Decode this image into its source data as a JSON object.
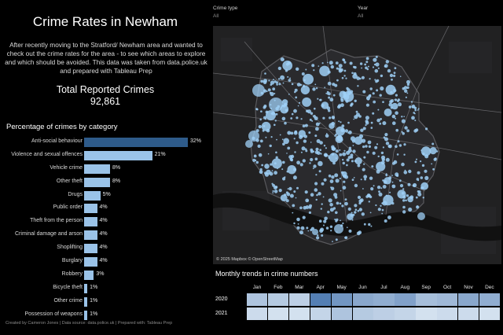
{
  "title": "Crime Rates in Newham",
  "intro": "After recently moving to the Stratford/ Newham area and wanted to check out the crime rates for the area - to see which areas to explore and which should be avoided. This data was taken from data.police.uk and prepared with Tableau Prep",
  "total": {
    "label": "Total Reported Crimes",
    "value": "92,861"
  },
  "categories": {
    "title": "Percentage of crimes by category",
    "items": [
      {
        "label": "Anti-social behaviour",
        "pct": "32%",
        "value": 32
      },
      {
        "label": "Violence and sexual offences",
        "pct": "21%",
        "value": 21
      },
      {
        "label": "Vehicle crime",
        "pct": "8%",
        "value": 8
      },
      {
        "label": "Other theft",
        "pct": "8%",
        "value": 8
      },
      {
        "label": "Drugs",
        "pct": "5%",
        "value": 5
      },
      {
        "label": "Public order",
        "pct": "4%",
        "value": 4
      },
      {
        "label": "Theft from the person",
        "pct": "4%",
        "value": 4
      },
      {
        "label": "Criminal damage and arson",
        "pct": "4%",
        "value": 4
      },
      {
        "label": "Shoplifting",
        "pct": "4%",
        "value": 4
      },
      {
        "label": "Burglary",
        "pct": "4%",
        "value": 4
      },
      {
        "label": "Robbery",
        "pct": "3%",
        "value": 3
      },
      {
        "label": "Bicycle theft",
        "pct": "1%",
        "value": 1
      },
      {
        "label": "Other crime",
        "pct": "1%",
        "value": 1
      },
      {
        "label": "Possession of weapons",
        "pct": "1%",
        "value": 1
      }
    ],
    "bar_color": "#9ac3e8",
    "top_bar_color": "#2e5b8a"
  },
  "filters": {
    "crime_type": {
      "label": "Crime type",
      "value": "All"
    },
    "year": {
      "label": "Year",
      "value": "All"
    }
  },
  "map": {
    "attribution": "© 2025 Mapbox © OpenStreetMap",
    "point_color": "#9fd0f7"
  },
  "trends": {
    "title": "Monthly trends in crime numbers",
    "months": [
      "Jan",
      "Feb",
      "Mar",
      "Apr",
      "May",
      "Jun",
      "Jul",
      "Aug",
      "Sep",
      "Oct",
      "Nov",
      "Dec"
    ],
    "years": [
      {
        "year": "2020",
        "shades": [
          0.35,
          0.3,
          0.25,
          0.95,
          0.75,
          0.6,
          0.55,
          0.65,
          0.4,
          0.45,
          0.6,
          0.55
        ]
      },
      {
        "year": "2021",
        "shades": [
          0.15,
          0.1,
          0.1,
          0.2,
          0.35,
          0.3,
          0.25,
          0.2,
          0.1,
          0.15,
          0.15,
          0.1
        ]
      }
    ]
  },
  "footer": "Created by Cameron Jones | Data source: data.police.uk | Prepared with: Tableau Prep"
}
